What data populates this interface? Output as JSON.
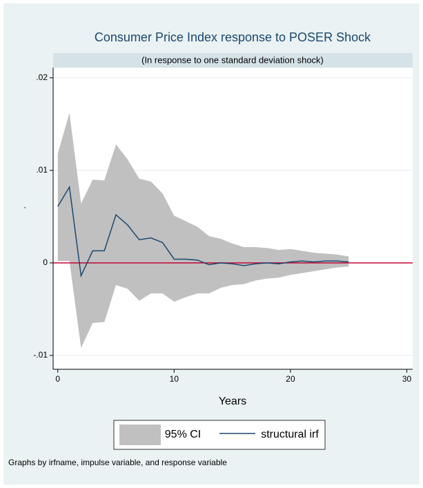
{
  "chart_data": {
    "type": "irf",
    "title": "Consumer Price Index response to POSER Shock",
    "subtitle": "(In response to one standard deviation shock)",
    "xlabel": "Years",
    "ylabel": ".",
    "note": "Graphs by irfname, impulse variable, and response variable",
    "x": [
      0,
      1,
      2,
      3,
      4,
      5,
      6,
      7,
      8,
      9,
      10,
      11,
      12,
      13,
      14,
      15,
      16,
      17,
      18,
      19,
      20,
      21,
      22,
      23,
      24,
      25
    ],
    "series": [
      {
        "name": "95% CI",
        "color": "#c0c0c0",
        "upper": [
          0.0118,
          0.0162,
          0.0064,
          0.009,
          0.0089,
          0.0128,
          0.0112,
          0.0091,
          0.0088,
          0.0075,
          0.0051,
          0.0045,
          0.0039,
          0.0029,
          0.0026,
          0.0021,
          0.0017,
          0.0017,
          0.0016,
          0.0014,
          0.0015,
          0.0013,
          0.0011,
          0.001,
          0.0009,
          0.0007
        ],
        "lower": [
          0.0002,
          0.0002,
          -0.0092,
          -0.0065,
          -0.0064,
          -0.0024,
          -0.0028,
          -0.0041,
          -0.0033,
          -0.0033,
          -0.0042,
          -0.0037,
          -0.0033,
          -0.0033,
          -0.0027,
          -0.0024,
          -0.0023,
          -0.0019,
          -0.0017,
          -0.0016,
          -0.0013,
          -0.0011,
          -0.0009,
          -0.0007,
          -0.0005,
          -0.0004
        ]
      },
      {
        "name": "structural irf",
        "color": "#1a476f",
        "values": [
          0.0061,
          0.0082,
          -0.0014,
          0.0013,
          0.0013,
          0.0052,
          0.0041,
          0.0025,
          0.0027,
          0.0022,
          0.0004,
          0.0004,
          0.0003,
          -0.0002,
          0,
          -0.0001,
          -0.0003,
          -0.0001,
          0,
          -0.0001,
          0.0001,
          0.0002,
          0.0001,
          0.0002,
          0.0002,
          0.0001
        ]
      }
    ],
    "yline": 0,
    "yline_color": "#c10534",
    "xlim": [
      -0.4,
      30.5
    ],
    "ylim": [
      -0.0115,
      0.0211
    ],
    "xticks": [
      0,
      10,
      20,
      30
    ],
    "yticks": [
      {
        "value": -0.01,
        "label": "-.01"
      },
      0,
      {
        "value": 0.01,
        "label": ".01"
      },
      {
        "value": 0.02,
        "label": ".02"
      }
    ],
    "grid": true
  }
}
